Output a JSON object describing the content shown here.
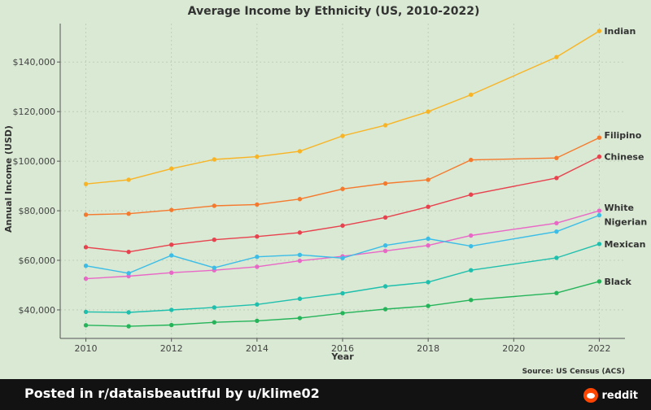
{
  "chart_data": {
    "type": "line",
    "title": "Average Income by Ethnicity (US, 2010-2022)",
    "xlabel": "Year",
    "ylabel": "Annual Income (USD)",
    "xlim": [
      2009.4,
      2022.6
    ],
    "ylim": [
      28500,
      155500
    ],
    "x_ticks": [
      2010,
      2012,
      2014,
      2016,
      2018,
      2020,
      2022
    ],
    "y_ticks": [
      40000,
      60000,
      80000,
      100000,
      120000,
      140000
    ],
    "y_tick_labels": [
      "$40,000",
      "$60,000",
      "$80,000",
      "$100,000",
      "$120,000",
      "$140,000"
    ],
    "grid": true,
    "source": "Source: US Census (ACS)",
    "series": [
      {
        "name": "Indian",
        "color": "#f8b425",
        "x": [
          2010,
          2011,
          2012,
          2013,
          2014,
          2015,
          2016,
          2017,
          2018,
          2019,
          2021,
          2022
        ],
        "values": [
          90800,
          92500,
          97000,
          100700,
          101800,
          104000,
          110200,
          114500,
          120000,
          126800,
          142000,
          152500
        ]
      },
      {
        "name": "Filipino",
        "color": "#f57a2d",
        "x": [
          2010,
          2011,
          2012,
          2013,
          2014,
          2015,
          2016,
          2017,
          2018,
          2019,
          2021,
          2022
        ],
        "values": [
          78400,
          78800,
          80300,
          82000,
          82500,
          84700,
          88800,
          91000,
          92500,
          100500,
          101300,
          109500
        ]
      },
      {
        "name": "Chinese",
        "color": "#e8424f",
        "x": [
          2010,
          2011,
          2012,
          2013,
          2014,
          2015,
          2016,
          2017,
          2018,
          2019,
          2021,
          2022
        ],
        "values": [
          65300,
          63400,
          66300,
          68300,
          69600,
          71200,
          74000,
          77300,
          81600,
          86500,
          93200,
          101800
        ]
      },
      {
        "name": "White",
        "color": "#e968c7",
        "x": [
          2010,
          2011,
          2012,
          2013,
          2014,
          2015,
          2016,
          2017,
          2018,
          2019,
          2021,
          2022
        ],
        "values": [
          52600,
          53600,
          55000,
          56000,
          57400,
          59800,
          61600,
          63800,
          66000,
          70000,
          75000,
          80000
        ]
      },
      {
        "name": "Nigerian",
        "color": "#3bbde8",
        "x": [
          2010,
          2011,
          2012,
          2013,
          2014,
          2015,
          2016,
          2017,
          2018,
          2019,
          2021,
          2022
        ],
        "values": [
          57800,
          54800,
          62000,
          57000,
          61400,
          62200,
          60900,
          66000,
          68700,
          65700,
          71600,
          78200
        ]
      },
      {
        "name": "Mexican",
        "color": "#1fbfae",
        "x": [
          2010,
          2011,
          2012,
          2013,
          2014,
          2015,
          2016,
          2017,
          2018,
          2019,
          2021,
          2022
        ],
        "values": [
          39200,
          39000,
          40000,
          41000,
          42200,
          44500,
          46700,
          49500,
          51200,
          56000,
          61000,
          66600
        ]
      },
      {
        "name": "Black",
        "color": "#25b45a",
        "x": [
          2010,
          2011,
          2012,
          2013,
          2014,
          2015,
          2016,
          2017,
          2018,
          2019,
          2021,
          2022
        ],
        "values": [
          33800,
          33400,
          33900,
          35000,
          35600,
          36700,
          38700,
          40300,
          41600,
          44000,
          46800,
          51500
        ]
      }
    ]
  },
  "footer": {
    "posted_text": "Posted in r/dataisbeautiful by u/klime02",
    "brand": "reddit",
    "brand_icon": "reddit-icon",
    "background": "#121212",
    "brand_color": "#ff4500"
  }
}
